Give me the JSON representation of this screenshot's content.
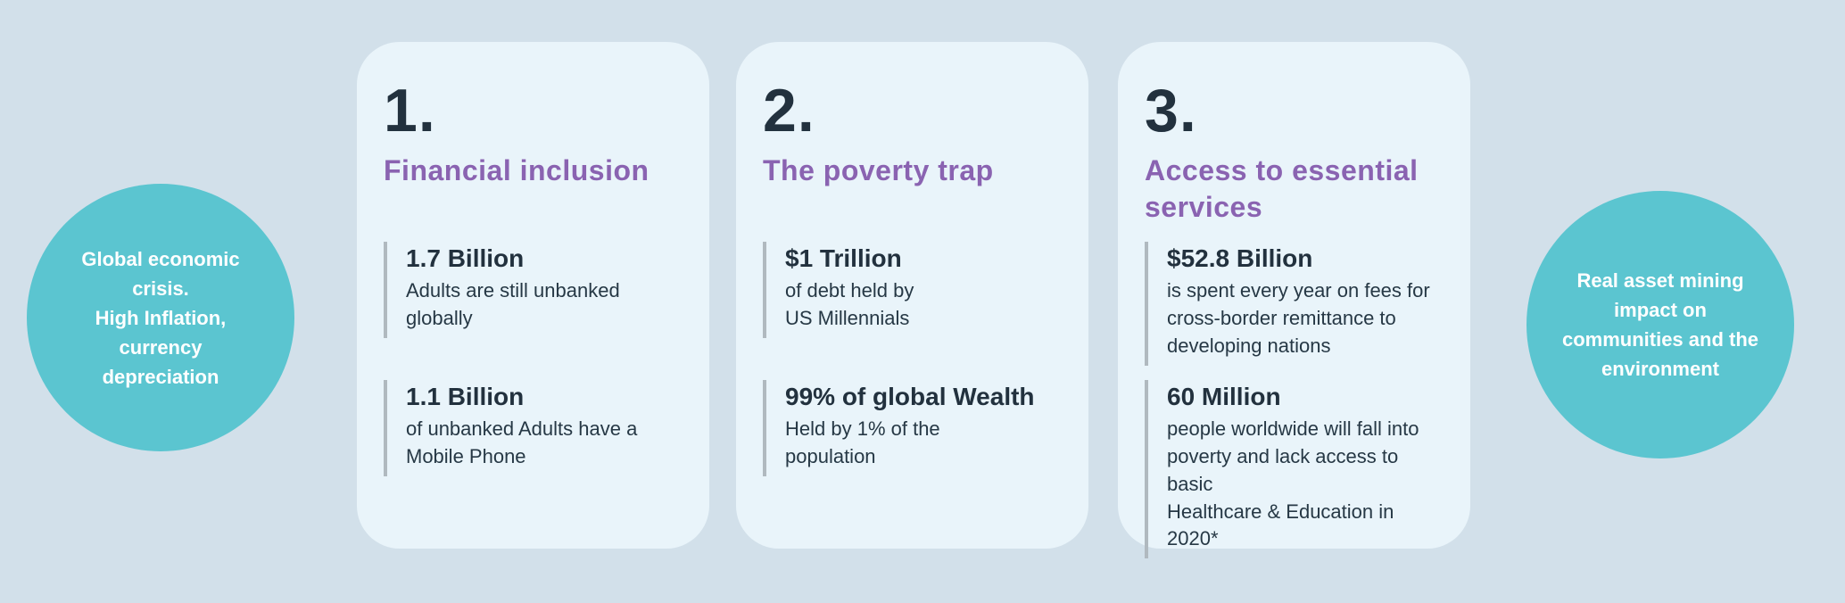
{
  "colors": {
    "page_bg": "#d2e0ea",
    "card_bg": "#e9f4fa",
    "accent_teal": "#5bc5d0",
    "heading_purple": "#8a63b1",
    "number_navy": "#22313e",
    "body_text": "#263845",
    "stat_bar_gray": "#b0b9bf"
  },
  "left_circle": {
    "text": "Global economic\ncrisis.\nHigh Inflation,\ncurrency\ndepreciation"
  },
  "right_circle": {
    "text": "Real asset  mining\nimpact on\ncommunities and the\nenvironment"
  },
  "cards": [
    {
      "number": "1.",
      "title": "Financial inclusion",
      "stats": [
        {
          "value": "1.7 Billion",
          "description": "Adults are still unbanked\nglobally"
        },
        {
          "value": "1.1 Billion",
          "description": "of unbanked Adults have a\nMobile Phone"
        }
      ]
    },
    {
      "number": "2.",
      "title": "The poverty trap",
      "stats": [
        {
          "value": "$1 Trillion",
          "description": "of debt held by\nUS Millennials"
        },
        {
          "value": "99% of global Wealth",
          "description": "Held by 1% of the\npopulation"
        }
      ]
    },
    {
      "number": "3.",
      "title": "Access to essential\nservices",
      "stats": [
        {
          "value": "$52.8 Billion",
          "description": "is spent every year on fees for\ncross-border remittance to\ndeveloping nations"
        },
        {
          "value": "60 Million",
          "description": "people worldwide will fall into\npoverty and lack access to basic\nHealthcare & Education in 2020*"
        }
      ]
    }
  ]
}
